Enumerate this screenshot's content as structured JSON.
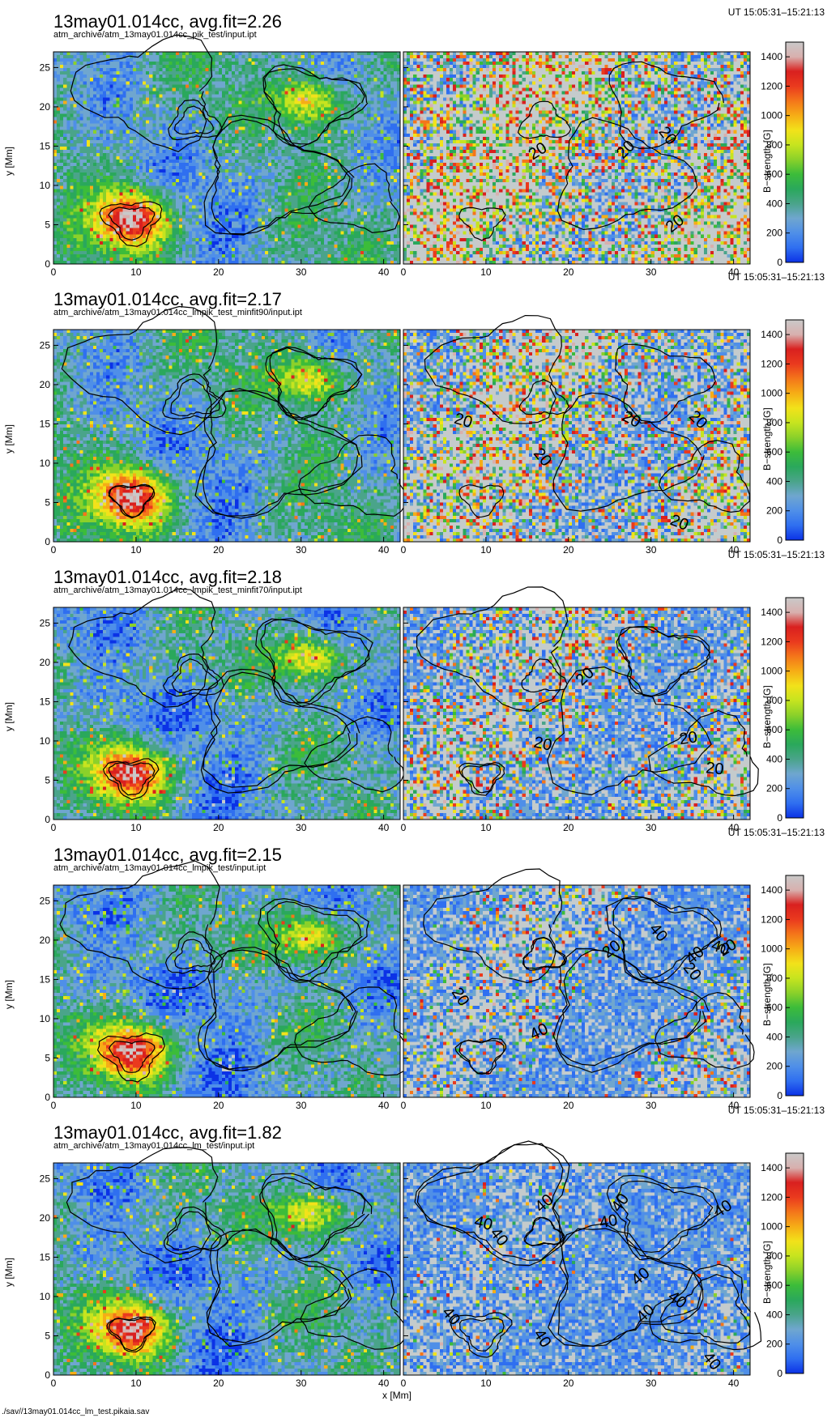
{
  "header": {
    "ut_range": "UT 15:05:31–15:21:13"
  },
  "footer": {
    "file": "./sav//13may01.014cc_lm_test.pikaia.sav"
  },
  "colors": {
    "colormap": [
      "#0b32e6",
      "#2f6ff0",
      "#4f8fe8",
      "#6fa6cf",
      "#4aa48a",
      "#2aa85c",
      "#3cbc3a",
      "#8bd12a",
      "#c6e41f",
      "#f2e21a",
      "#f6ad16",
      "#f4761a",
      "#ea3a1e",
      "#d9201f",
      "#d8b0ae",
      "#c9c9c9"
    ],
    "saturated": "#c4cbcc",
    "contour": "#000000"
  },
  "chart_data": [
    {
      "type": "heatmap",
      "title": "13may01.014cc, avg.fit=2.26",
      "subtitle": "atm_archive/atm_13may01.014cc_pik_test/input.ipt",
      "xlabel": "",
      "ylabel": "y [Mm]",
      "xlim": [
        0,
        42
      ],
      "ylim": [
        0,
        27
      ],
      "xticks": [
        0,
        10,
        20,
        30,
        40
      ],
      "yticks": [
        0,
        5,
        10,
        15,
        20,
        25
      ],
      "colorbar": {
        "label": "B−strength [G]",
        "range": [
          0,
          1500
        ],
        "ticks": [
          0,
          200,
          400,
          600,
          800,
          1000,
          1200,
          1400
        ]
      },
      "contour_labels_right": [
        "20",
        "20",
        "20",
        "20"
      ]
    },
    {
      "type": "heatmap",
      "title": "13may01.014cc, avg.fit=2.17",
      "subtitle": "atm_archive/atm_13may01.014cc_lmpik_test_minfit90/input.ipt",
      "xlabel": "",
      "ylabel": "y [Mm]",
      "xlim": [
        0,
        42
      ],
      "ylim": [
        0,
        27
      ],
      "xticks": [
        0,
        10,
        20,
        30,
        40
      ],
      "yticks": [
        0,
        5,
        10,
        15,
        20,
        25
      ],
      "colorbar": {
        "label": "B−strength [G]",
        "range": [
          0,
          1500
        ],
        "ticks": [
          0,
          200,
          400,
          600,
          800,
          1000,
          1200,
          1400
        ]
      },
      "contour_labels_right": [
        "20",
        "20",
        "20",
        "20",
        "20"
      ]
    },
    {
      "type": "heatmap",
      "title": "13may01.014cc, avg.fit=2.18",
      "subtitle": "atm_archive/atm_13may01.014cc_lmpik_test_minfit70/input.ipt",
      "xlabel": "",
      "ylabel": "y [Mm]",
      "xlim": [
        0,
        42
      ],
      "ylim": [
        0,
        27
      ],
      "xticks": [
        0,
        10,
        20,
        30,
        40
      ],
      "yticks": [
        0,
        5,
        10,
        15,
        20,
        25
      ],
      "colorbar": {
        "label": "B−strength [G]",
        "range": [
          0,
          1500
        ],
        "ticks": [
          0,
          200,
          400,
          600,
          800,
          1000,
          1200,
          1400
        ]
      },
      "contour_labels_right": [
        "20",
        "20",
        "20",
        "20"
      ]
    },
    {
      "type": "heatmap",
      "title": "13may01.014cc, avg.fit=2.15",
      "subtitle": "atm_archive/atm_13may01.014cc_lmpik_test/input.ipt",
      "xlabel": "",
      "ylabel": "y [Mm]",
      "xlim": [
        0,
        42
      ],
      "ylim": [
        0,
        27
      ],
      "xticks": [
        0,
        10,
        20,
        30,
        40
      ],
      "yticks": [
        0,
        5,
        10,
        15,
        20,
        25
      ],
      "colorbar": {
        "label": "B−strength [G]",
        "range": [
          0,
          1500
        ],
        "ticks": [
          0,
          200,
          400,
          600,
          800,
          1000,
          1200,
          1400
        ]
      },
      "contour_labels_right": [
        "40",
        "40",
        "40",
        "20",
        "20",
        "40",
        "20",
        "20"
      ]
    },
    {
      "type": "heatmap",
      "title": "13may01.014cc, avg.fit=1.82",
      "subtitle": "atm_archive/atm_13may01.014cc_lm_test/input.ipt",
      "xlabel": "x [Mm]",
      "ylabel": "y [Mm]",
      "xlim": [
        0,
        42
      ],
      "ylim": [
        0,
        27
      ],
      "xticks": [
        0,
        10,
        20,
        30,
        40
      ],
      "yticks": [
        0,
        5,
        10,
        15,
        20,
        25
      ],
      "colorbar": {
        "label": "B−strength [G]",
        "range": [
          0,
          1500
        ],
        "ticks": [
          0,
          200,
          400,
          600,
          800,
          1000,
          1200,
          1400
        ]
      },
      "contour_labels_right": [
        "40",
        "40",
        "40",
        "40",
        "40",
        "40",
        "40",
        "40",
        "40",
        "40",
        "40",
        "40"
      ]
    }
  ]
}
